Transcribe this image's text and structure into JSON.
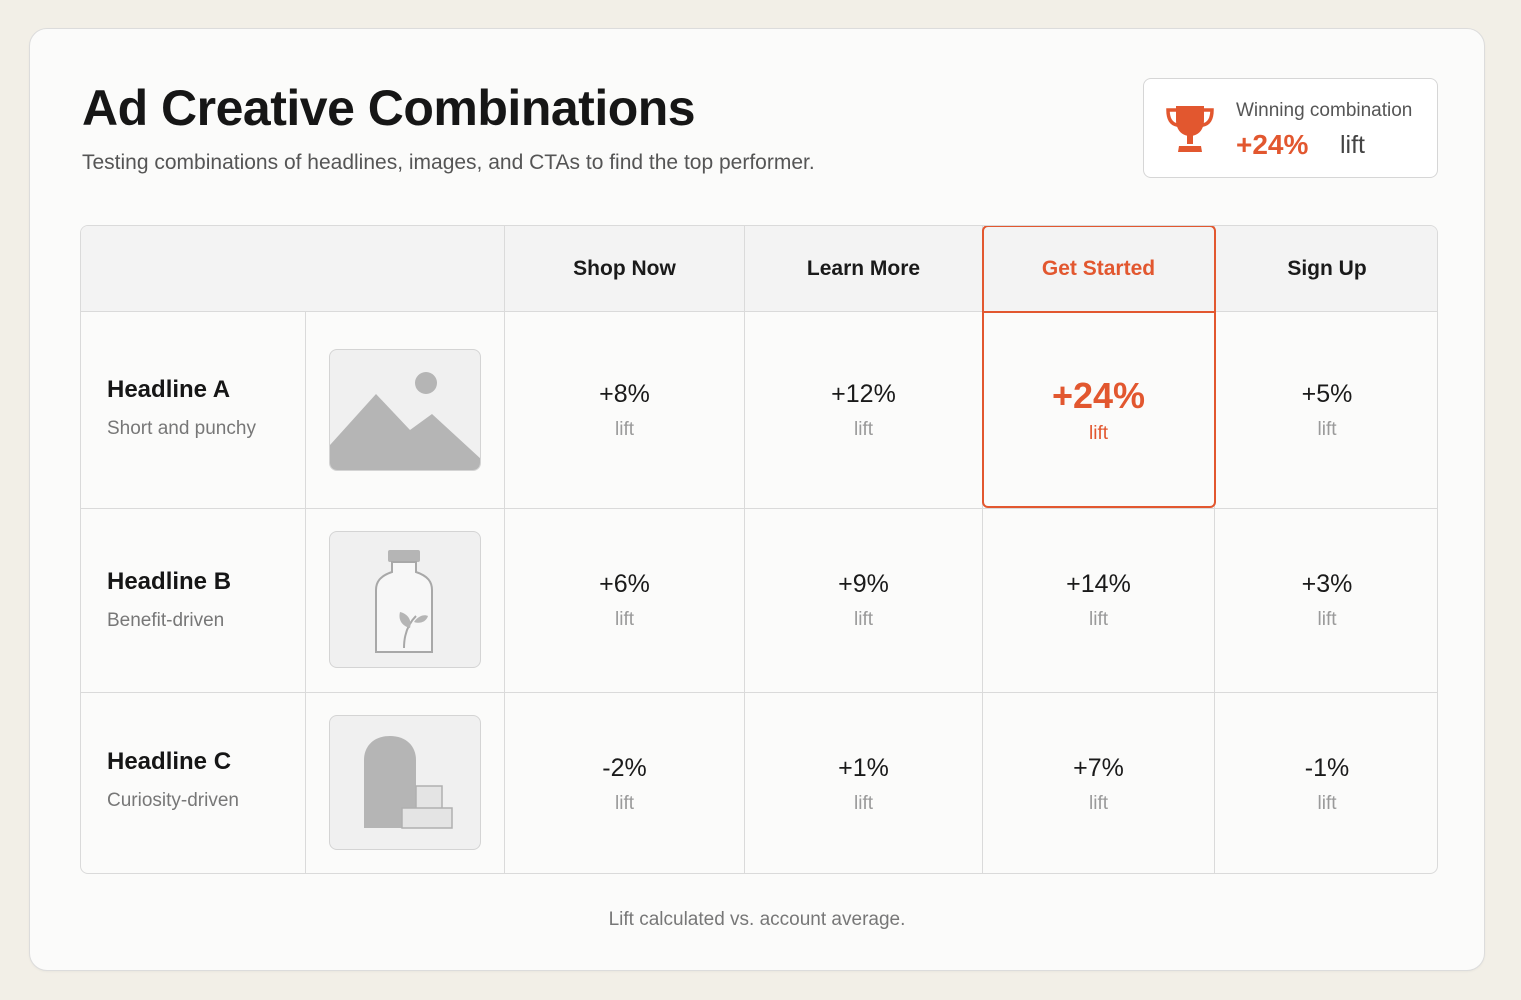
{
  "header": {
    "title": "Ad Creative Combinations",
    "subtitle": "Testing combinations of headlines, images, and CTAs to find the top performer."
  },
  "winner": {
    "label": "Winning combination",
    "value": "+24%",
    "unit": "lift",
    "icon": "trophy-icon"
  },
  "columns": [
    "Shop Now",
    "Learn More",
    "Get Started",
    "Sign Up"
  ],
  "active_column": "Get Started",
  "rows": [
    {
      "headline": "Headline A",
      "description": "Short and punchy",
      "image_icon": "landscape-image-icon",
      "values": [
        "+8%",
        "+12%",
        "+24%",
        "+5%"
      ],
      "units": [
        "lift",
        "lift",
        "lift",
        "lift"
      ]
    },
    {
      "headline": "Headline B",
      "description": "Benefit-driven",
      "image_icon": "bottle-image-icon",
      "values": [
        "+6%",
        "+9%",
        "+14%",
        "+3%"
      ],
      "units": [
        "lift",
        "lift",
        "lift",
        "lift"
      ]
    },
    {
      "headline": "Headline C",
      "description": "Curiosity-driven",
      "image_icon": "arch-image-icon",
      "values": [
        "-2%",
        "+1%",
        "+7%",
        "-1%"
      ],
      "units": [
        "lift",
        "lift",
        "lift",
        "lift"
      ]
    }
  ],
  "footnote": "Lift calculated vs. account average.",
  "colors": {
    "accent": "#e2572f",
    "background": "#f2efe7",
    "card": "#fbfbfa",
    "header_row": "#f3f3f3",
    "border": "#dadada"
  }
}
